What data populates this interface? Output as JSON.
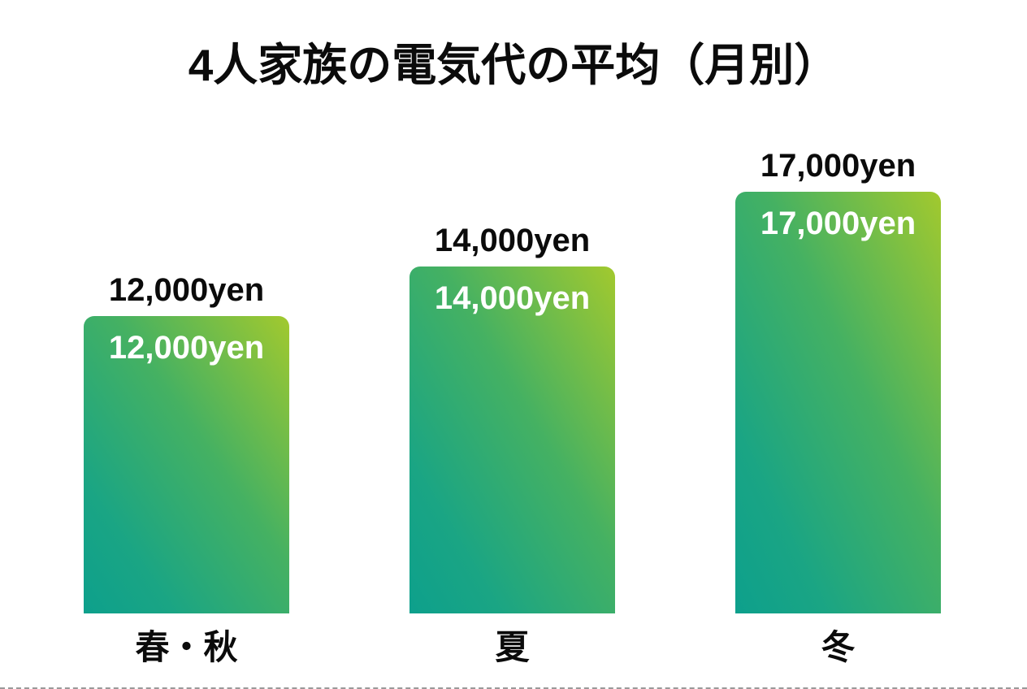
{
  "title": "4人家族の電気代の平均（月別）",
  "chart_data": {
    "type": "bar",
    "title": "4人家族の電気代の平均（月別）",
    "categories": [
      "春・秋",
      "夏",
      "冬"
    ],
    "values": [
      12000,
      14000,
      17000
    ],
    "unit": "yen",
    "bar_labels_above": [
      "12,000yen",
      "14,000yen",
      "17,000yen"
    ],
    "bar_labels_inside": [
      "12,000yen",
      "14,000yen",
      "17,000yen"
    ],
    "xlabel": "",
    "ylabel": "",
    "ylim": [
      0,
      17000
    ],
    "grid": false,
    "legend": "none",
    "colors": {
      "bar_gradient_from": "#0da08c",
      "bar_gradient_to": "#a2c92e",
      "label_above": "#0b0b0b",
      "label_inside": "#ffffff",
      "background": "#ffffff"
    }
  }
}
